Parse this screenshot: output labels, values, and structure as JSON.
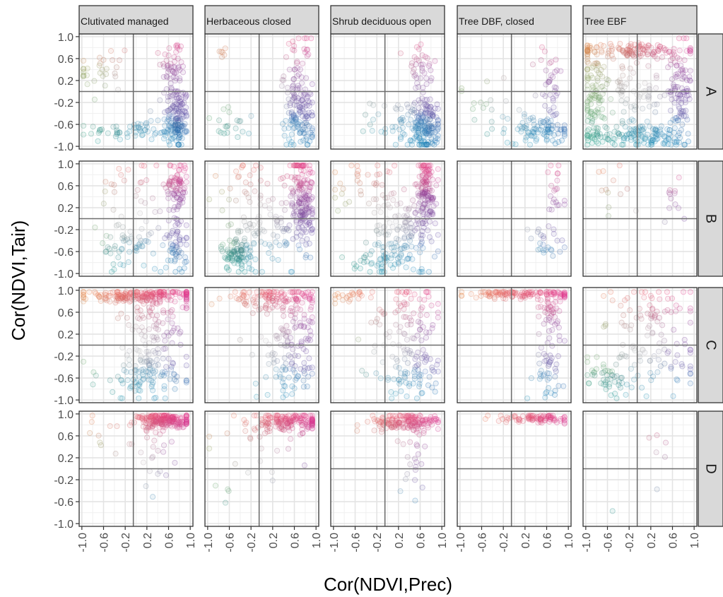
{
  "chart_data": {
    "type": "scatter",
    "xlabel": "Cor(NDVI,Prec)",
    "ylabel": "Cor(NDVI,Tair)",
    "xlim": [
      -1.05,
      1.05
    ],
    "ylim": [
      -1.05,
      1.05
    ],
    "x_ticks": [
      "-1.0",
      "-0.6",
      "-0.2",
      "0.2",
      "0.6",
      "1.0"
    ],
    "y_ticks": [
      "1.0",
      "0.6",
      "0.2",
      "-0.2",
      "-0.6",
      "-1.0"
    ],
    "reference_lines": {
      "x": -0.05,
      "y": 0.0
    },
    "grid": true,
    "facet_columns": [
      "Clutivated managed",
      "Herbaceous closed",
      "Shrub deciduous open",
      "Tree DBF, closed",
      "Tree EBF"
    ],
    "facet_rows": [
      "A",
      "B",
      "C",
      "D"
    ],
    "color_scheme": {
      "upper_left": "#f08a4b",
      "upper_right": "#e8338f",
      "right_middle": "#7b3fa8",
      "lower_right": "#0a70b8",
      "lower_middle": "#3fa9dc",
      "lower_left": "#16a086",
      "left_middle": "#7cc36a",
      "center": "#c9c9c9"
    },
    "panels": [
      {
        "column": "Clutivated managed",
        "row": "A",
        "clusters": [
          {
            "cx": 0.75,
            "cy": -0.5,
            "sx": 0.12,
            "sy": 0.3,
            "n": 130
          },
          {
            "cx": 0.7,
            "cy": 0.4,
            "sx": 0.12,
            "sy": 0.3,
            "n": 60
          },
          {
            "cx": 0.0,
            "cy": -0.72,
            "sx": 0.45,
            "sy": 0.08,
            "n": 70
          },
          {
            "cx": -0.6,
            "cy": 0.4,
            "sx": 0.25,
            "sy": 0.35,
            "n": 30
          }
        ]
      },
      {
        "column": "Herbaceous closed",
        "row": "A",
        "clusters": [
          {
            "cx": 0.7,
            "cy": -0.45,
            "sx": 0.15,
            "sy": 0.3,
            "n": 120
          },
          {
            "cx": 0.65,
            "cy": 0.35,
            "sx": 0.12,
            "sy": 0.35,
            "n": 45
          },
          {
            "cx": -0.5,
            "cy": -0.6,
            "sx": 0.3,
            "sy": 0.15,
            "n": 20
          },
          {
            "cx": -0.75,
            "cy": 0.7,
            "sx": 0.1,
            "sy": 0.08,
            "n": 6
          }
        ]
      },
      {
        "column": "Shrub deciduous open",
        "row": "A",
        "clusters": [
          {
            "cx": 0.7,
            "cy": -0.65,
            "sx": 0.12,
            "sy": 0.25,
            "n": 140
          },
          {
            "cx": 0.3,
            "cy": -0.55,
            "sx": 0.3,
            "sy": 0.2,
            "n": 60
          },
          {
            "cx": 0.6,
            "cy": 0.3,
            "sx": 0.15,
            "sy": 0.35,
            "n": 40
          }
        ]
      },
      {
        "column": "Tree DBF, closed",
        "row": "A",
        "clusters": [
          {
            "cx": 0.5,
            "cy": -0.7,
            "sx": 0.3,
            "sy": 0.12,
            "n": 90
          },
          {
            "cx": 0.65,
            "cy": 0.1,
            "sx": 0.12,
            "sy": 0.4,
            "n": 35
          },
          {
            "cx": -0.5,
            "cy": -0.3,
            "sx": 0.35,
            "sy": 0.3,
            "n": 20
          }
        ]
      },
      {
        "column": "Tree EBF",
        "row": "A",
        "clusters": [
          {
            "cx": -0.1,
            "cy": 0.75,
            "sx": 0.55,
            "sy": 0.07,
            "n": 120
          },
          {
            "cx": -0.85,
            "cy": -0.1,
            "sx": 0.12,
            "sy": 0.45,
            "n": 90
          },
          {
            "cx": 0.0,
            "cy": -0.8,
            "sx": 0.55,
            "sy": 0.1,
            "n": 140
          },
          {
            "cx": 0.75,
            "cy": 0.0,
            "sx": 0.1,
            "sy": 0.45,
            "n": 90
          },
          {
            "cx": -0.1,
            "cy": 0.0,
            "sx": 0.4,
            "sy": 0.35,
            "n": 90
          }
        ]
      },
      {
        "column": "Clutivated managed",
        "row": "B",
        "clusters": [
          {
            "cx": 0.75,
            "cy": 0.6,
            "sx": 0.1,
            "sy": 0.25,
            "n": 80
          },
          {
            "cx": 0.75,
            "cy": -0.45,
            "sx": 0.1,
            "sy": 0.3,
            "n": 60
          },
          {
            "cx": -0.1,
            "cy": -0.5,
            "sx": 0.3,
            "sy": 0.25,
            "n": 60
          },
          {
            "cx": -0.2,
            "cy": 0.5,
            "sx": 0.35,
            "sy": 0.3,
            "n": 25
          }
        ]
      },
      {
        "column": "Herbaceous closed",
        "row": "B",
        "clusters": [
          {
            "cx": 0.75,
            "cy": 0.4,
            "sx": 0.1,
            "sy": 0.45,
            "n": 160
          },
          {
            "cx": -0.45,
            "cy": -0.65,
            "sx": 0.15,
            "sy": 0.15,
            "n": 80
          },
          {
            "cx": 0.1,
            "cy": -0.3,
            "sx": 0.35,
            "sy": 0.35,
            "n": 90
          },
          {
            "cx": -0.1,
            "cy": 0.6,
            "sx": 0.4,
            "sy": 0.3,
            "n": 40
          }
        ]
      },
      {
        "column": "Shrub deciduous open",
        "row": "B",
        "clusters": [
          {
            "cx": 0.7,
            "cy": 0.5,
            "sx": 0.1,
            "sy": 0.35,
            "n": 140
          },
          {
            "cx": 0.3,
            "cy": -0.3,
            "sx": 0.3,
            "sy": 0.35,
            "n": 120
          },
          {
            "cx": -0.3,
            "cy": 0.6,
            "sx": 0.4,
            "sy": 0.3,
            "n": 40
          },
          {
            "cx": -0.2,
            "cy": -0.75,
            "sx": 0.2,
            "sy": 0.1,
            "n": 40
          }
        ]
      },
      {
        "column": "Tree DBF, closed",
        "row": "B",
        "clusters": [
          {
            "cx": 0.75,
            "cy": 0.5,
            "sx": 0.1,
            "sy": 0.3,
            "n": 20
          },
          {
            "cx": 0.55,
            "cy": -0.5,
            "sx": 0.2,
            "sy": 0.2,
            "n": 25
          }
        ]
      },
      {
        "column": "Tree EBF",
        "row": "B",
        "clusters": [
          {
            "cx": 0.6,
            "cy": 0.4,
            "sx": 0.2,
            "sy": 0.25,
            "n": 12
          },
          {
            "cx": -0.5,
            "cy": 0.3,
            "sx": 0.4,
            "sy": 0.5,
            "n": 12
          }
        ]
      },
      {
        "column": "Clutivated managed",
        "row": "C",
        "clusters": [
          {
            "cx": 0.1,
            "cy": 0.9,
            "sx": 0.55,
            "sy": 0.06,
            "n": 200
          },
          {
            "cx": 0.2,
            "cy": -0.5,
            "sx": 0.45,
            "sy": 0.25,
            "n": 120
          },
          {
            "cx": 0.4,
            "cy": 0.4,
            "sx": 0.35,
            "sy": 0.3,
            "n": 80
          }
        ]
      },
      {
        "column": "Herbaceous closed",
        "row": "C",
        "clusters": [
          {
            "cx": 0.2,
            "cy": 0.85,
            "sx": 0.45,
            "sy": 0.1,
            "n": 120
          },
          {
            "cx": 0.5,
            "cy": -0.4,
            "sx": 0.3,
            "sy": 0.3,
            "n": 80
          },
          {
            "cx": 0.6,
            "cy": 0.35,
            "sx": 0.2,
            "sy": 0.35,
            "n": 50
          }
        ]
      },
      {
        "column": "Shrub deciduous open",
        "row": "C",
        "clusters": [
          {
            "cx": 0.4,
            "cy": 0.5,
            "sx": 0.35,
            "sy": 0.35,
            "n": 80
          },
          {
            "cx": 0.4,
            "cy": -0.5,
            "sx": 0.35,
            "sy": 0.25,
            "n": 80
          },
          {
            "cx": -0.7,
            "cy": 0.9,
            "sx": 0.15,
            "sy": 0.06,
            "n": 20
          }
        ]
      },
      {
        "column": "Tree DBF, closed",
        "row": "C",
        "clusters": [
          {
            "cx": 0.1,
            "cy": 0.93,
            "sx": 0.5,
            "sy": 0.04,
            "n": 120
          },
          {
            "cx": 0.7,
            "cy": 0.6,
            "sx": 0.1,
            "sy": 0.25,
            "n": 50
          },
          {
            "cx": 0.6,
            "cy": -0.45,
            "sx": 0.15,
            "sy": 0.25,
            "n": 40
          }
        ]
      },
      {
        "column": "Tree EBF",
        "row": "C",
        "clusters": [
          {
            "cx": -0.6,
            "cy": -0.55,
            "sx": 0.25,
            "sy": 0.2,
            "n": 50
          },
          {
            "cx": 0.3,
            "cy": 0.6,
            "sx": 0.45,
            "sy": 0.3,
            "n": 60
          },
          {
            "cx": 0.3,
            "cy": -0.3,
            "sx": 0.45,
            "sy": 0.35,
            "n": 60
          }
        ]
      },
      {
        "column": "Clutivated managed",
        "row": "D",
        "clusters": [
          {
            "cx": 0.55,
            "cy": 0.88,
            "sx": 0.25,
            "sy": 0.07,
            "n": 200
          },
          {
            "cx": 0.3,
            "cy": 0.3,
            "sx": 0.2,
            "sy": 0.35,
            "n": 25
          },
          {
            "cx": -0.4,
            "cy": 0.6,
            "sx": 0.35,
            "sy": 0.3,
            "n": 10
          }
        ]
      },
      {
        "column": "Herbaceous closed",
        "row": "D",
        "clusters": [
          {
            "cx": 0.5,
            "cy": 0.85,
            "sx": 0.35,
            "sy": 0.08,
            "n": 160
          },
          {
            "cx": 0.0,
            "cy": 0.5,
            "sx": 0.45,
            "sy": 0.35,
            "n": 25
          },
          {
            "cx": -0.7,
            "cy": -0.45,
            "sx": 0.1,
            "sy": 0.15,
            "n": 4
          }
        ]
      },
      {
        "column": "Shrub deciduous open",
        "row": "D",
        "clusters": [
          {
            "cx": 0.35,
            "cy": 0.85,
            "sx": 0.35,
            "sy": 0.08,
            "n": 160
          },
          {
            "cx": 0.45,
            "cy": 0.3,
            "sx": 0.15,
            "sy": 0.35,
            "n": 25
          }
        ]
      },
      {
        "column": "Tree DBF, closed",
        "row": "D",
        "clusters": [
          {
            "cx": 0.4,
            "cy": 0.92,
            "sx": 0.35,
            "sy": 0.04,
            "n": 90
          }
        ]
      },
      {
        "column": "Tree EBF",
        "row": "D",
        "clusters": [
          {
            "cx": 0.5,
            "cy": 0.6,
            "sx": 0.2,
            "sy": 0.15,
            "n": 5
          },
          {
            "cx": -0.1,
            "cy": -0.3,
            "sx": 0.3,
            "sy": 0.3,
            "n": 2
          }
        ]
      }
    ]
  }
}
